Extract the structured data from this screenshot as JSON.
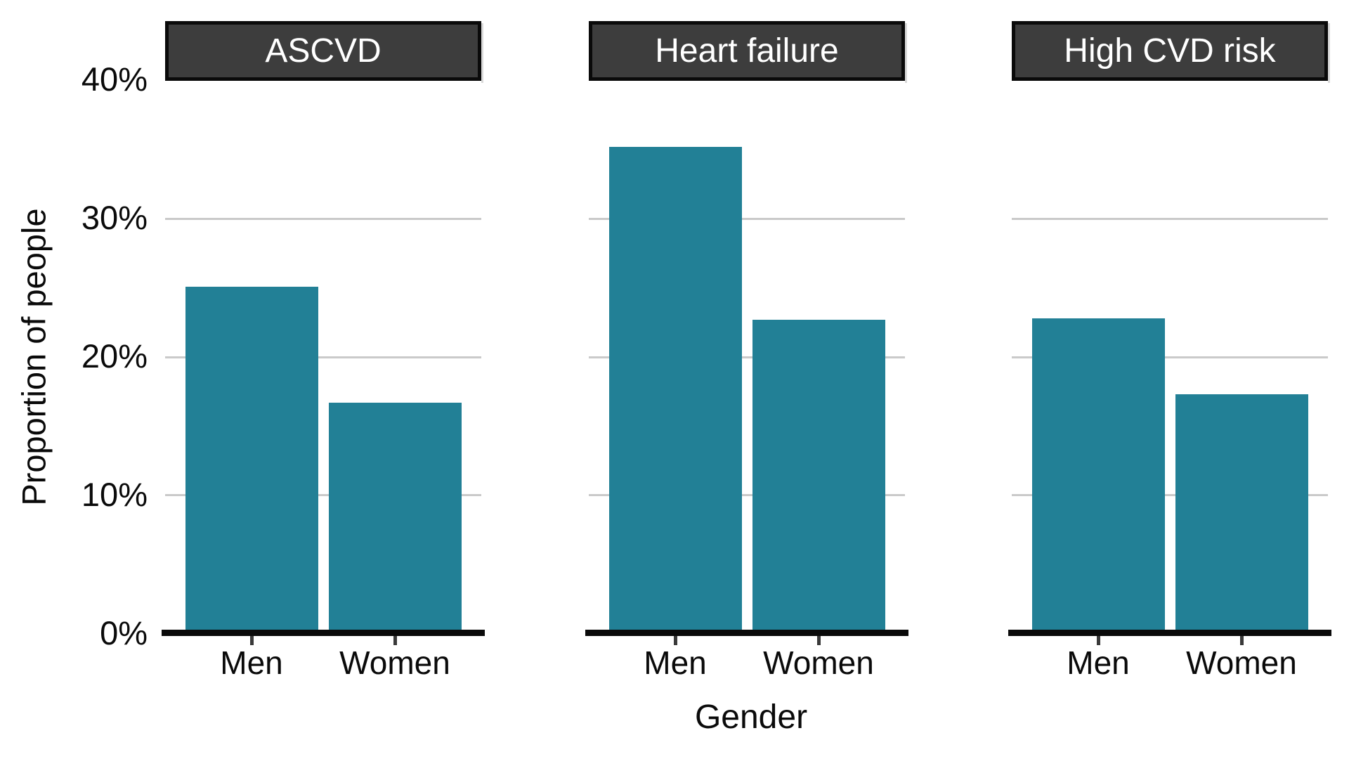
{
  "chart_data": {
    "type": "bar",
    "faceted": true,
    "title": "",
    "xlabel": "Gender",
    "ylabel": "Proportion of people",
    "categories": [
      "Men",
      "Women"
    ],
    "facets": [
      {
        "label": "ASCVD",
        "values": [
          25.1,
          16.7
        ]
      },
      {
        "label": "Heart failure",
        "values": [
          35.2,
          22.7
        ]
      },
      {
        "label": "High CVD risk",
        "values": [
          22.8,
          17.3
        ]
      }
    ],
    "value_unit": "%",
    "ylim": [
      0,
      40
    ],
    "y_ticks": [
      "0%",
      "10%",
      "20%",
      "30%",
      "40%"
    ],
    "y_tick_values": [
      0,
      10,
      20,
      30,
      40
    ],
    "gridline_values": [
      10,
      20,
      30
    ],
    "legend": "none",
    "colors": {
      "bar": "#228096",
      "strip_background": "#3d3d3d",
      "strip_text": "#ffffff",
      "gridline": "#cacaca",
      "axis_line": "#0a0a0a",
      "text": "#0a0a0a"
    }
  }
}
